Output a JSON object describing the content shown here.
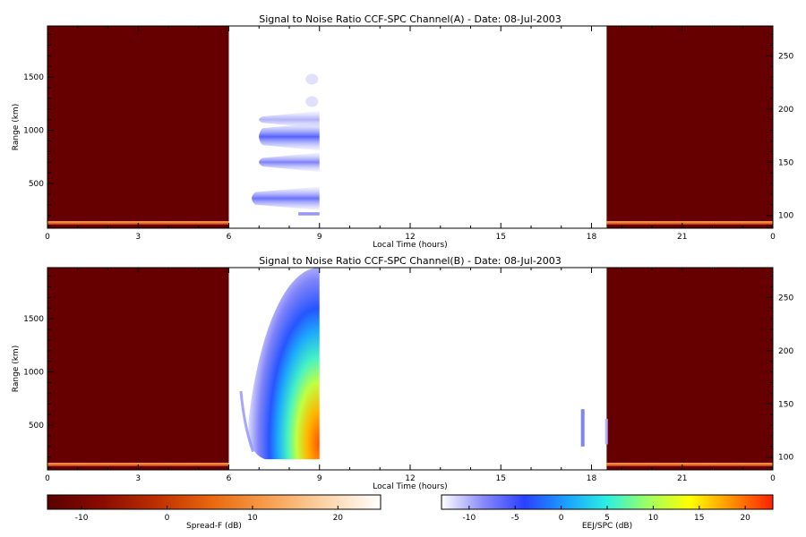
{
  "chart_data": [
    {
      "type": "heatmap",
      "title": "Signal to Noise Ratio CCF-SPC Channel(A) - Date: 08-Jul-2003",
      "xlabel": "Local Time (hours)",
      "ylabel": "Range (km)",
      "x_tick_labels": [
        "0",
        "3",
        "6",
        "9",
        "12",
        "15",
        "18",
        "21",
        "0"
      ],
      "y_ticks": [
        500,
        1000,
        1500
      ],
      "y_right_ticks": [
        100,
        150,
        200,
        250
      ],
      "xlim": [
        0,
        24
      ],
      "ylim": [
        80,
        1980
      ],
      "y_right_lim": [
        88,
        278
      ],
      "regions": [
        {
          "name": "spread-f-night-early",
          "x": [
            0,
            6
          ],
          "y": [
            80,
            1980
          ],
          "colorscale": "spread-f",
          "level_db": -14
        },
        {
          "name": "spread-f-night-late",
          "x": [
            18.5,
            24
          ],
          "y": [
            80,
            1980
          ],
          "colorscale": "spread-f",
          "level_db": -14
        },
        {
          "name": "eej-echo-layers",
          "x": [
            6.7,
            9
          ],
          "y": [
            200,
            1200
          ],
          "colorscale": "eej",
          "peak_db": -6
        }
      ]
    },
    {
      "type": "heatmap",
      "title": "Signal to Noise Ratio CCF-SPC Channel(B) - Date: 08-Jul-2003",
      "xlabel": "Local Time (hours)",
      "ylabel": "Range (km)",
      "x_tick_labels": [
        "0",
        "3",
        "6",
        "9",
        "12",
        "15",
        "18",
        "21",
        "0"
      ],
      "y_ticks": [
        500,
        1000,
        1500
      ],
      "y_right_ticks": [
        100,
        150,
        200,
        250
      ],
      "xlim": [
        0,
        24
      ],
      "ylim": [
        80,
        1980
      ],
      "y_right_lim": [
        88,
        278
      ],
      "regions": [
        {
          "name": "spread-f-night-early",
          "x": [
            0,
            6
          ],
          "y": [
            80,
            1980
          ],
          "colorscale": "spread-f",
          "level_db": -14
        },
        {
          "name": "spread-f-night-late",
          "x": [
            18.5,
            24
          ],
          "y": [
            80,
            1980
          ],
          "colorscale": "spread-f",
          "level_db": -14
        },
        {
          "name": "eej-echo-plume",
          "x": [
            6.4,
            9
          ],
          "y": [
            180,
            1980
          ],
          "colorscale": "eej",
          "peak_db": 21
        },
        {
          "name": "eej-echo-late",
          "x": [
            17.6,
            18.5
          ],
          "y": [
            300,
            650
          ],
          "colorscale": "eej",
          "peak_db": -7
        }
      ]
    }
  ],
  "colorbars": [
    {
      "label": "Spread-F (dB)",
      "range": [
        -14,
        25
      ],
      "ticks": [
        -10,
        0,
        10,
        20
      ],
      "stops": [
        "#5a0000",
        "#8a0c00",
        "#c03000",
        "#ea6a10",
        "#f7a050",
        "#fcd4a8",
        "#ffffff"
      ]
    },
    {
      "label": "EEJ/SPC (dB)",
      "range": [
        -13,
        23
      ],
      "ticks": [
        -10,
        -5,
        0,
        5,
        10,
        15,
        20
      ],
      "stops": [
        "#ffffff",
        "#8a8af8",
        "#2a40ff",
        "#1aa0ff",
        "#2cf0e0",
        "#a0ff60",
        "#ffff00",
        "#ff9000",
        "#ff2000"
      ]
    }
  ],
  "colors": {
    "night_fill": "#660000",
    "ground_clutter": "#ff9a40"
  }
}
